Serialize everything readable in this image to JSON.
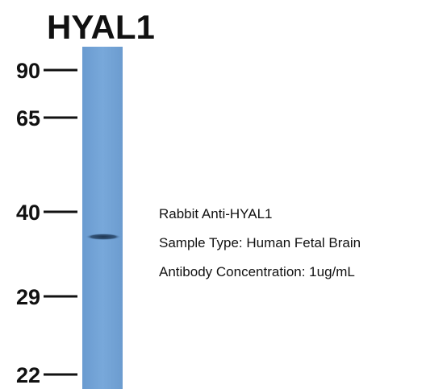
{
  "title": "HYAL1",
  "markers": [
    "90",
    "65",
    "40",
    "29",
    "22"
  ],
  "annotations": [
    "Rabbit Anti-HYAL1",
    "Sample Type: Human Fetal Brain",
    "Antibody Concentration: 1ug/mL"
  ]
}
